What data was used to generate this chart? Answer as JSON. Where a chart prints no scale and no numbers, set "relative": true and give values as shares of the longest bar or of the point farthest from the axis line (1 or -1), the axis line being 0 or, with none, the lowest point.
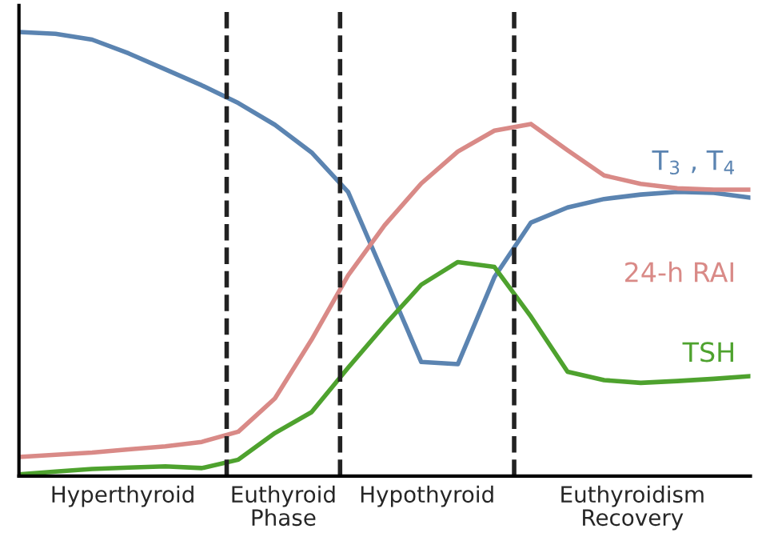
{
  "chart_data": {
    "type": "line",
    "relative": true,
    "legend": false,
    "marker": "none",
    "line_style": "solid",
    "categories": [
      null,
      null,
      null,
      null,
      null,
      null,
      null,
      null,
      null,
      null,
      null,
      null,
      null,
      null,
      null,
      null,
      null,
      null,
      null,
      null,
      null
    ],
    "series": [
      {
        "name": "T$_{3}$ , T$_{4}$",
        "color": "#5b84b1",
        "values": [
          1.0,
          0.996,
          0.983,
          0.952,
          0.916,
          0.88,
          0.84,
          0.791,
          0.729,
          0.64,
          0.449,
          0.257,
          0.252,
          0.448,
          0.571,
          0.605,
          0.624,
          0.634,
          0.64,
          0.638,
          0.627
        ]
      },
      {
        "name": "24-h RAI",
        "color": "#d98a87",
        "values": [
          0.043,
          0.048,
          0.053,
          0.06,
          0.067,
          0.077,
          0.1,
          0.175,
          0.307,
          0.452,
          0.565,
          0.659,
          0.731,
          0.778,
          0.793,
          0.734,
          0.677,
          0.658,
          0.648,
          0.645,
          0.645
        ]
      },
      {
        "name": "TSH",
        "color": "#4ea22e",
        "values": [
          0.004,
          0.01,
          0.016,
          0.019,
          0.022,
          0.018,
          0.037,
          0.097,
          0.144,
          0.244,
          0.34,
          0.431,
          0.482,
          0.471,
          0.359,
          0.235,
          0.216,
          0.21,
          0.214,
          0.219,
          0.225
        ]
      }
    ],
    "annotations": [
      "Hyperthyroid",
      "Euthyroid\nPhase",
      "Hypothyroid",
      "Euthyroidism\nRecovery"
    ]
  }
}
